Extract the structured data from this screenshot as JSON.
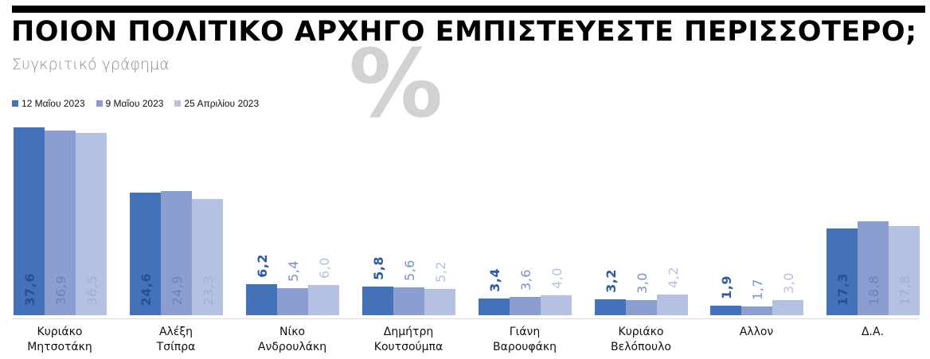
{
  "header": {
    "title": "ΠΟΙΟΝ ΠΟΛΙΤΙΚΟ ΑΡΧΗΓΟ ΕΜΠΙΣΤΕΥΕΣΤΕ ΠΕΡΙΣΣΟΤΕΡΟ;",
    "subtitle": "Συγκριτικό γράφημα",
    "watermark": "%"
  },
  "legend": [
    {
      "label": "12 Μαΐου 2023",
      "color": "#4472b8"
    },
    {
      "label": "9 Μαΐου 2023",
      "color": "#8a9fd0"
    },
    {
      "label": "25 Απριλίου 2023",
      "color": "#b5c1e3"
    }
  ],
  "labels": {
    "g0": {
      "c1": "Κυριάκο",
      "c2": "Μητσοτάκη",
      "v0": "37,6",
      "v1": "36,9",
      "v2": "36,5"
    },
    "g1": {
      "c1": "Αλέξη",
      "c2": "Τσίπρα",
      "v0": "24,6",
      "v1": "24,9",
      "v2": "23,3"
    },
    "g2": {
      "c1": "Νίκο",
      "c2": "Ανδρουλάκη",
      "v0": "6,2",
      "v1": "5,4",
      "v2": "6,0"
    },
    "g3": {
      "c1": "Δημήτρη",
      "c2": "Κουτσούμπα",
      "v0": "5,8",
      "v1": "5,6",
      "v2": "5,2"
    },
    "g4": {
      "c1": "Γιάνη",
      "c2": "Βαρουφάκη",
      "v0": "3,4",
      "v1": "3,6",
      "v2": "4,0"
    },
    "g5": {
      "c1": "Κυριάκο",
      "c2": "Βελόπουλο",
      "v0": "3,2",
      "v1": "3,0",
      "v2": "4,2"
    },
    "g6": {
      "c1": "Αλλον",
      "c2": "",
      "v0": "1,9",
      "v1": "1,7",
      "v2": "3,0"
    },
    "g7": {
      "c1": "Δ.Α.",
      "c2": "",
      "v0": "17,3",
      "v1": "18,8",
      "v2": "17,8"
    }
  },
  "chart_data": {
    "type": "bar",
    "title": "ΠΟΙΟΝ ΠΟΛΙΤΙΚΟ ΑΡΧΗΓΟ ΕΜΠΙΣΤΕΥΕΣΤΕ ΠΕΡΙΣΣΟΤΕΡΟ;",
    "subtitle": "Συγκριτικό γράφημα",
    "xlabel": "",
    "ylabel": "%",
    "categories": [
      "Κυριάκο Μητσοτάκη",
      "Αλέξη Τσίπρα",
      "Νίκο Ανδρουλάκη",
      "Δημήτρη Κουτσούμπα",
      "Γιάνη Βαρουφάκη",
      "Κυριάκο Βελόπουλο",
      "Αλλον",
      "Δ.Α."
    ],
    "series": [
      {
        "name": "12 Μαΐου 2023",
        "color": "#4472b8",
        "values": [
          37.6,
          24.6,
          6.2,
          5.8,
          3.4,
          3.2,
          1.9,
          17.3
        ]
      },
      {
        "name": "9 Μαΐου 2023",
        "color": "#8a9fd0",
        "values": [
          36.9,
          24.9,
          5.4,
          5.6,
          3.6,
          3.0,
          1.7,
          18.8
        ]
      },
      {
        "name": "25 Απριλίου 2023",
        "color": "#b5c1e3",
        "values": [
          36.5,
          23.3,
          6.0,
          5.2,
          4.0,
          4.2,
          3.0,
          17.8
        ]
      }
    ],
    "legend_position": "top-left",
    "grid": false,
    "ylim": [
      0,
      40
    ]
  }
}
